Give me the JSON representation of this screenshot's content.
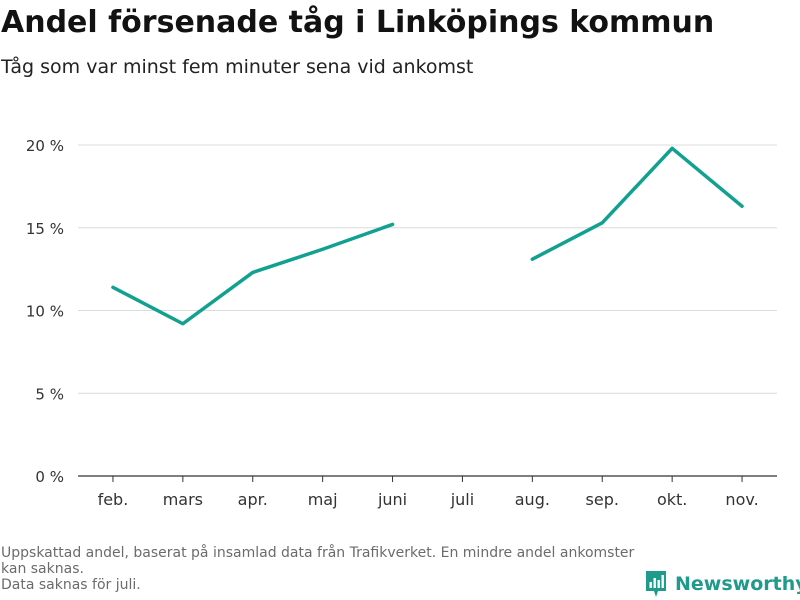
{
  "title": "Andel försenade tåg i Linköpings kommun",
  "subtitle": "Tåg som var minst fem minuter sena vid ankomst",
  "footnote": [
    "Uppskattad andel, baserat på insamlad data från Trafikverket. En mindre andel ankomster kan saknas.",
    "Data saknas för juli."
  ],
  "brand": {
    "name": "Newsworthy",
    "color": "#1f9a8b",
    "icon": "newsworthy-logo-icon"
  },
  "chart_data": {
    "type": "line",
    "categories": [
      "feb.",
      "mars",
      "apr.",
      "maj",
      "juni",
      "juli",
      "aug.",
      "sep.",
      "okt.",
      "nov."
    ],
    "series": [
      {
        "values": [
          11.4,
          9.2,
          12.3,
          13.7,
          15.2,
          null,
          13.1,
          15.3,
          19.8,
          16.3
        ]
      }
    ],
    "ylim": [
      0,
      20
    ],
    "yticks": [
      0,
      5,
      10,
      15,
      20
    ],
    "ytick_labels": [
      "0 %",
      "5 %",
      "10 %",
      "15 %",
      "20 %"
    ],
    "line_color": "#12a091",
    "grid": true,
    "legend": "none"
  }
}
